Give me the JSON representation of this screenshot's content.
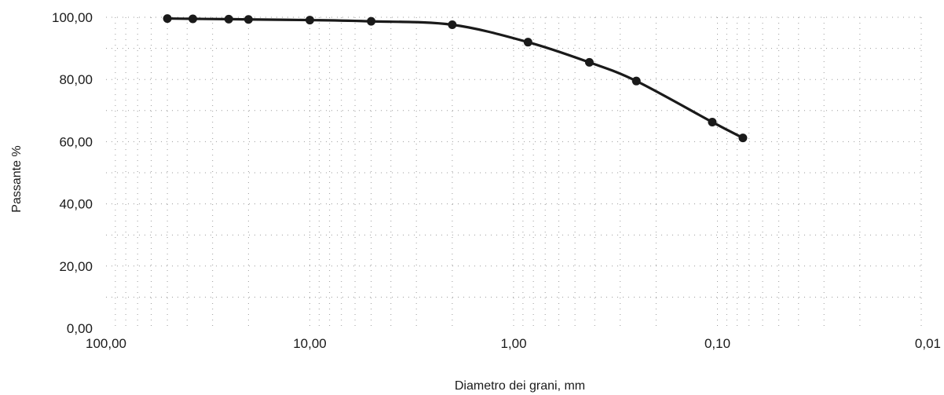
{
  "chart_data": {
    "type": "line",
    "title": "",
    "xlabel": "Diametro dei grani, mm",
    "ylabel": "Passante %",
    "x_scale": "log",
    "x_reversed": true,
    "xlim": [
      100,
      0.01
    ],
    "ylim": [
      0,
      100
    ],
    "x_ticks": [
      {
        "value": 100,
        "label": "100,00"
      },
      {
        "value": 10,
        "label": "10,00"
      },
      {
        "value": 1,
        "label": "1,00"
      },
      {
        "value": 0.1,
        "label": "0,10"
      },
      {
        "value": 0.01,
        "label": "0,01"
      }
    ],
    "y_ticks": [
      {
        "value": 100,
        "label": "100,00"
      },
      {
        "value": 80,
        "label": "80,00"
      },
      {
        "value": 60,
        "label": "60,00"
      },
      {
        "value": 40,
        "label": "40,00"
      },
      {
        "value": 20,
        "label": "20,00"
      },
      {
        "value": 0,
        "label": "0,00"
      }
    ],
    "grid": true,
    "series": [
      {
        "x": [
          50,
          37.5,
          25,
          20,
          10,
          5,
          2,
          0.85,
          0.425,
          0.25,
          0.106,
          0.075
        ],
        "y": [
          99.6,
          99.5,
          99.4,
          99.3,
          99.1,
          98.7,
          97.6,
          92.0,
          85.5,
          79.5,
          66.3,
          61.2
        ]
      }
    ],
    "colors": {
      "line": "#1a1a1a",
      "grid": "#9a9a9a",
      "text": "#1a1a1a"
    }
  }
}
